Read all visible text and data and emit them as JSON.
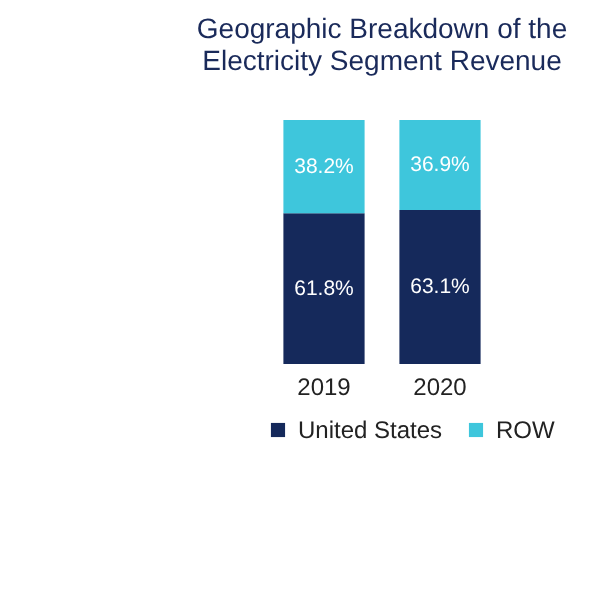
{
  "chart_data": {
    "type": "bar",
    "title": "Geographic Breakdown of the Electricity Segment Revenue",
    "categories": [
      "2019",
      "2020"
    ],
    "stacked": true,
    "ylim": [
      0,
      100
    ],
    "legend": "bottom",
    "series": [
      {
        "name": "United States",
        "color": "#15295b",
        "values": [
          61.8,
          63.1
        ],
        "value_labels": [
          "61.8%",
          "63.1%"
        ]
      },
      {
        "name": "ROW",
        "color": "#3ec6dc",
        "values": [
          38.2,
          36.9
        ],
        "value_labels": [
          "38.2%",
          "36.9%"
        ]
      }
    ]
  }
}
